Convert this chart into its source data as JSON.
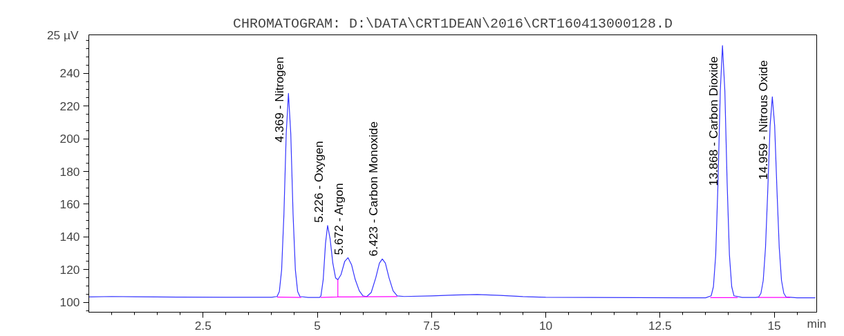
{
  "chart_data": {
    "type": "line",
    "title": "CHROMATOGRAM: D:\\DATA\\CRT1DEAN\\2016\\CRT160413000128.D",
    "xlabel": "min",
    "series": [
      {
        "color": "#3333ff",
        "x": [
          0.0,
          0.5,
          1.0,
          2.0,
          3.0,
          4.0,
          4.12,
          4.17,
          4.22,
          4.27,
          4.32,
          4.369,
          4.42,
          4.47,
          4.52,
          4.57,
          4.62,
          4.8,
          5.05,
          5.08,
          5.13,
          5.18,
          5.226,
          5.28,
          5.34,
          5.4,
          5.45,
          5.52,
          5.6,
          5.672,
          5.75,
          5.83,
          5.92,
          6.0,
          6.08,
          6.18,
          6.28,
          6.36,
          6.423,
          6.49,
          6.57,
          6.66,
          6.75,
          6.9,
          7.5,
          8.0,
          8.5,
          9.0,
          9.5,
          10.0,
          11.0,
          12.0,
          13.0,
          13.5,
          13.62,
          13.67,
          13.72,
          13.77,
          13.82,
          13.868,
          13.92,
          13.97,
          14.02,
          14.07,
          14.12,
          14.3,
          14.6,
          14.66,
          14.71,
          14.76,
          14.81,
          14.86,
          14.91,
          14.959,
          15.01,
          15.06,
          15.11,
          15.16,
          15.21,
          15.26,
          15.5,
          15.9
        ],
        "values": [
          103.3,
          103.6,
          103.4,
          103.2,
          103.1,
          103.1,
          103.6,
          106.7,
          120,
          154,
          203,
          227.7,
          203,
          154,
          120,
          106.7,
          103.6,
          103.0,
          103.0,
          104,
          114,
          136,
          147,
          139,
          124,
          115,
          113.8,
          117,
          125,
          127.3,
          123,
          114,
          107,
          104,
          103.5,
          106,
          115,
          124,
          126.5,
          124,
          115,
          107,
          104,
          103.6,
          104,
          104.5,
          104.8,
          104.3,
          103.5,
          103.1,
          103.0,
          102.9,
          102.8,
          102.8,
          104,
          109.6,
          129,
          173,
          229,
          256.9,
          229,
          173,
          129,
          109.6,
          104,
          103,
          103,
          103.3,
          105.6,
          113.4,
          133.6,
          169,
          208,
          225.6,
          208,
          169,
          133.6,
          113.4,
          105.6,
          103.3,
          102.8,
          102.8
        ]
      },
      {
        "color": "#ff00ff",
        "x": [
          4.12,
          4.65,
          4.66,
          5.07,
          5.45,
          5.45,
          5.45,
          6.05,
          6.75,
          6.76,
          13.6,
          14.2,
          14.21,
          14.65,
          15.35
        ],
        "values": [
          103.2,
          103.0,
          null,
          103.0,
          103.3,
          113.8,
          103.3,
          103.4,
          103.5,
          null,
          102.9,
          102.9,
          null,
          103.0,
          103.0
        ]
      }
    ],
    "annotations": [
      {
        "text": "4.369 -  Nitrogen",
        "x": 4.369,
        "y": 227.7
      },
      {
        "text": "5.226 -  Oxygen",
        "x": 5.226,
        "y": 147
      },
      {
        "text": "5.672 -  Argon",
        "x": 5.672,
        "y": 127.3
      },
      {
        "text": "6.423 -  Carbon Monoxide",
        "x": 6.423,
        "y": 126.5
      },
      {
        "text": "13.868 -  Carbon Dioxide",
        "x": 13.868,
        "y": 256.9
      },
      {
        "text": "14.959 -  Nitrous Oxide",
        "x": 14.959,
        "y": 225.6
      }
    ],
    "xlim": [
      0,
      15.93
    ],
    "ylim": [
      94,
      263.5
    ],
    "xticks": [
      {
        "value": 0.5,
        "label": null
      },
      {
        "value": 1,
        "label": null
      },
      {
        "value": 1.5,
        "label": null
      },
      {
        "value": 2,
        "label": null
      },
      2.5,
      {
        "value": 3,
        "label": null
      },
      {
        "value": 3.5,
        "label": null
      },
      {
        "value": 4,
        "label": null
      },
      {
        "value": 4.5,
        "label": null
      },
      5,
      {
        "value": 5.5,
        "label": null
      },
      {
        "value": 6,
        "label": null
      },
      {
        "value": 6.5,
        "label": null
      },
      {
        "value": 7,
        "label": null
      },
      7.5,
      {
        "value": 8,
        "label": null
      },
      {
        "value": 8.5,
        "label": null
      },
      {
        "value": 9,
        "label": null
      },
      {
        "value": 9.5,
        "label": null
      },
      10,
      {
        "value": 10.5,
        "label": null
      },
      {
        "value": 11,
        "label": null
      },
      {
        "value": 11.5,
        "label": null
      },
      {
        "value": 12,
        "label": null
      },
      12.5,
      {
        "value": 13,
        "label": null
      },
      {
        "value": 13.5,
        "label": null
      },
      {
        "value": 14,
        "label": null
      },
      {
        "value": 14.5,
        "label": null
      },
      15,
      {
        "value": 15.5,
        "label": null
      }
    ],
    "yticks": [
      {
        "value": 95,
        "label": null
      },
      100,
      {
        "value": 105,
        "label": null
      },
      {
        "value": 110,
        "label": null
      },
      {
        "value": 115,
        "label": null
      },
      120,
      {
        "value": 125,
        "label": null
      },
      {
        "value": 130,
        "label": null
      },
      {
        "value": 135,
        "label": null
      },
      140,
      {
        "value": 145,
        "label": null
      },
      {
        "value": 150,
        "label": null
      },
      {
        "value": 155,
        "label": null
      },
      160,
      {
        "value": 165,
        "label": null
      },
      {
        "value": 170,
        "label": null
      },
      {
        "value": 175,
        "label": null
      },
      180,
      {
        "value": 185,
        "label": null
      },
      {
        "value": 190,
        "label": null
      },
      {
        "value": 195,
        "label": null
      },
      200,
      {
        "value": 205,
        "label": null
      },
      {
        "value": 210,
        "label": null
      },
      {
        "value": 215,
        "label": null
      },
      220,
      {
        "value": 225,
        "label": null
      },
      {
        "value": 230,
        "label": null
      },
      {
        "value": 235,
        "label": null
      },
      240,
      {
        "value": 245,
        "label": null
      },
      {
        "value": 250,
        "label": null
      },
      {
        "value": 255,
        "label": null
      },
      {
        "value": 260,
        "label": null
      }
    ],
    "ylabel": "25 µV",
    "grid": false
  }
}
